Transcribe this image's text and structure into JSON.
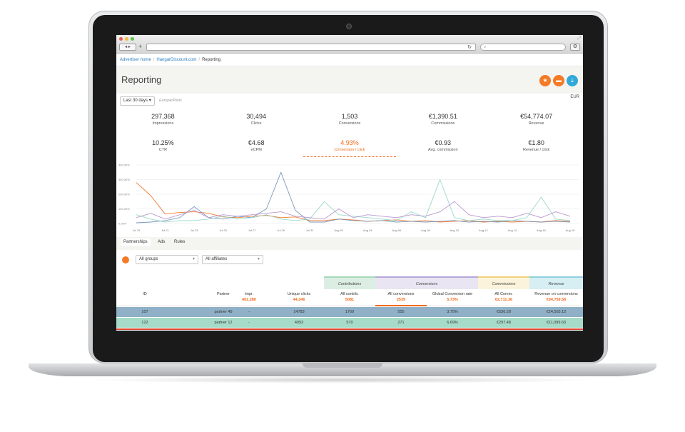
{
  "breadcrumb": {
    "home": "Advertiser home",
    "site": "HangarDiscount.com",
    "current": "Reporting"
  },
  "page_title": "Reporting",
  "filters": {
    "date_range": "Last 30 days",
    "timezone": "Europe/Paris",
    "currency": "EUR"
  },
  "metrics_row1": [
    {
      "value": "297,368",
      "label": "Impressions"
    },
    {
      "value": "30,494",
      "label": "Clicks"
    },
    {
      "value": "1,503",
      "label": "Conversions"
    },
    {
      "value": "€1,390.51",
      "label": "Commissions"
    },
    {
      "value": "€54,774.07",
      "label": "Revenue"
    }
  ],
  "metrics_row2": [
    {
      "value": "10.25%",
      "label": "CTR"
    },
    {
      "value": "€4.68",
      "label": "eCPM"
    },
    {
      "value": "4.93%",
      "label": "Conversion / click"
    },
    {
      "value": "€0.93",
      "label": "Avg. commission"
    },
    {
      "value": "€1.80",
      "label": "Revenue / click"
    }
  ],
  "chart_data": {
    "type": "line",
    "y_ticks": [
      "400.00%",
      "300.00%",
      "200.00%",
      "100.00%",
      "0.00%"
    ],
    "ylim": [
      0,
      400
    ],
    "x": [
      "Jul 19",
      "Jul 20",
      "Jul 21",
      "Jul 22",
      "Jul 23",
      "Jul 24",
      "Jul 25",
      "Jul 26",
      "Jul 27",
      "Jul 28",
      "Jul 29",
      "Jul 30",
      "Jul 31",
      "Aug 01",
      "Aug 02",
      "Aug 03",
      "Aug 04",
      "Aug 05",
      "Aug 06",
      "Aug 07",
      "Aug 08",
      "Aug 09",
      "Aug 10",
      "Aug 11",
      "Aug 12",
      "Aug 13",
      "Aug 14",
      "Aug 15",
      "Aug 16",
      "Aug 17",
      "Aug 18"
    ],
    "x_tick_labels": [
      "Jul 19",
      "Jul 21",
      "Jul 23",
      "Jul 25",
      "Jul 27",
      "Jul 29",
      "Jul 31",
      "Aug 02",
      "Aug 04",
      "Aug 06",
      "Aug 08",
      "Aug 10",
      "Aug 12",
      "Aug 14",
      "Aug 16",
      "Aug 18"
    ],
    "series": [
      {
        "color": "#f26a1b",
        "values": [
          280,
          190,
          65,
          75,
          80,
          70,
          45,
          40,
          50,
          55,
          40,
          45,
          20,
          20,
          30,
          25,
          15,
          20,
          25,
          15,
          20,
          10,
          15,
          20,
          10,
          15,
          10,
          15,
          10,
          20,
          15
        ]
      },
      {
        "color": "#6b8db3",
        "values": [
          5,
          10,
          20,
          40,
          115,
          40,
          30,
          50,
          40,
          100,
          350,
          90,
          10,
          10,
          30,
          20,
          15,
          20,
          10,
          15,
          10,
          15,
          20,
          10,
          15,
          10,
          20,
          15,
          10,
          15,
          10
        ]
      },
      {
        "color": "#8fd4c5",
        "values": [
          60,
          30,
          10,
          20,
          20,
          30,
          50,
          30,
          40,
          60,
          30,
          20,
          30,
          150,
          60,
          50,
          40,
          30,
          20,
          80,
          40,
          300,
          40,
          20,
          30,
          20,
          20,
          40,
          180,
          30,
          20
        ]
      },
      {
        "color": "#b48fc9",
        "values": [
          40,
          70,
          30,
          60,
          90,
          40,
          60,
          50,
          60,
          70,
          80,
          50,
          40,
          30,
          100,
          40,
          60,
          50,
          40,
          60,
          50,
          80,
          150,
          60,
          40,
          50,
          40,
          70,
          40,
          80,
          50
        ]
      }
    ]
  },
  "tabs": [
    "Partnerships",
    "Ads",
    "Rules"
  ],
  "group_select": "All groups",
  "affiliate_select": "All affiliates",
  "table": {
    "groups": {
      "contributions": "Contributions",
      "conversions": "Conversions",
      "commissions": "Commissions",
      "revenue": "Revenue"
    },
    "headers": [
      {
        "label": "ID",
        "total": ""
      },
      {
        "label": "Partner",
        "total": ""
      },
      {
        "label": "Impr.",
        "total": "402,280"
      },
      {
        "label": "Unique clicks",
        "total": "44,346"
      },
      {
        "label": "All contrib.",
        "total": "5081"
      },
      {
        "label": "All conversions",
        "total": "2539"
      },
      {
        "label": "Global Conversion rate",
        "total": "5.73%"
      },
      {
        "label": "All Comm.",
        "total": "€2,711.36"
      },
      {
        "label": "Revenue on conversions",
        "total": "€94,759.56"
      }
    ],
    "rows": [
      [
        "107",
        "partner 49",
        "-",
        "14783",
        "1769",
        "555",
        "3.75%",
        "€536.28",
        "€24,503.12"
      ],
      [
        "122",
        "partner 12",
        "-",
        "4053",
        "570",
        "271",
        "6.69%",
        "€297.48",
        "€11,099.63"
      ]
    ]
  }
}
